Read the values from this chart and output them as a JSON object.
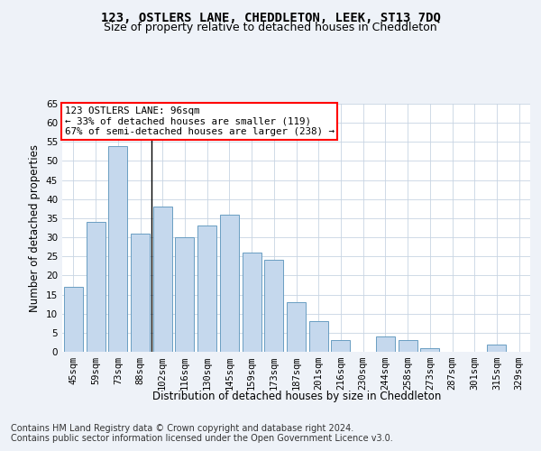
{
  "title": "123, OSTLERS LANE, CHEDDLETON, LEEK, ST13 7DQ",
  "subtitle": "Size of property relative to detached houses in Cheddleton",
  "xlabel": "Distribution of detached houses by size in Cheddleton",
  "ylabel": "Number of detached properties",
  "categories": [
    "45sqm",
    "59sqm",
    "73sqm",
    "88sqm",
    "102sqm",
    "116sqm",
    "130sqm",
    "145sqm",
    "159sqm",
    "173sqm",
    "187sqm",
    "201sqm",
    "216sqm",
    "230sqm",
    "244sqm",
    "258sqm",
    "273sqm",
    "287sqm",
    "301sqm",
    "315sqm",
    "329sqm"
  ],
  "values": [
    17,
    34,
    54,
    31,
    38,
    30,
    33,
    36,
    26,
    24,
    13,
    8,
    3,
    0,
    4,
    3,
    1,
    0,
    0,
    2,
    0
  ],
  "bar_color": "#c5d8ed",
  "bar_edge_color": "#6a9ec2",
  "annotation_text": "123 OSTLERS LANE: 96sqm\n← 33% of detached houses are smaller (119)\n67% of semi-detached houses are larger (238) →",
  "annotation_box_color": "white",
  "annotation_box_edge_color": "red",
  "vline_pos": 3.5,
  "ylim": [
    0,
    65
  ],
  "yticks": [
    0,
    5,
    10,
    15,
    20,
    25,
    30,
    35,
    40,
    45,
    50,
    55,
    60,
    65
  ],
  "footer_line1": "Contains HM Land Registry data © Crown copyright and database right 2024.",
  "footer_line2": "Contains public sector information licensed under the Open Government Licence v3.0.",
  "bg_color": "#eef2f8",
  "plot_bg_color": "#ffffff",
  "title_fontsize": 10,
  "subtitle_fontsize": 9,
  "axis_label_fontsize": 8.5,
  "tick_fontsize": 7.5,
  "footer_fontsize": 7
}
